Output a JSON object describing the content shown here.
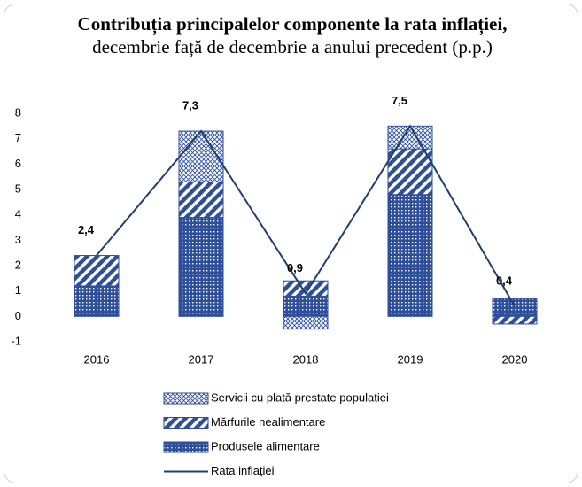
{
  "chart_data": {
    "type": "bar",
    "title_bold": "Contribuția principalelor componente la rata inflației,",
    "title_rest": "decembrie față de decembrie a anului precedent (p.p.)",
    "categories": [
      "2016",
      "2017",
      "2018",
      "2019",
      "2020"
    ],
    "series": [
      {
        "name": "Produsele alimentare",
        "color": "#2f4f9a",
        "pattern": "dots",
        "values": [
          1.2,
          3.9,
          0.8,
          4.8,
          0.7
        ]
      },
      {
        "name": "Mărfurile nealimentare",
        "color": "#2f4f9a",
        "pattern": "diagonal",
        "values": [
          1.2,
          1.4,
          0.6,
          1.8,
          -0.3
        ]
      },
      {
        "name": "Servicii cu plată prestate  populației",
        "color": "#2f4f9a",
        "pattern": "mesh",
        "values": [
          0,
          2.0,
          -0.5,
          0.9,
          0
        ]
      },
      {
        "name": "Rata inflației",
        "type": "line",
        "color": "#1f3f6e",
        "values": [
          2.4,
          7.3,
          0.9,
          7.5,
          0.4
        ],
        "value_labels": [
          "2,4",
          "7,3",
          "0,9",
          "7,5",
          "0,4"
        ]
      }
    ],
    "ylim": [
      -1,
      8
    ],
    "yticks": [
      -1,
      0,
      1,
      2,
      3,
      4,
      5,
      6,
      7,
      8
    ],
    "grid": false
  }
}
